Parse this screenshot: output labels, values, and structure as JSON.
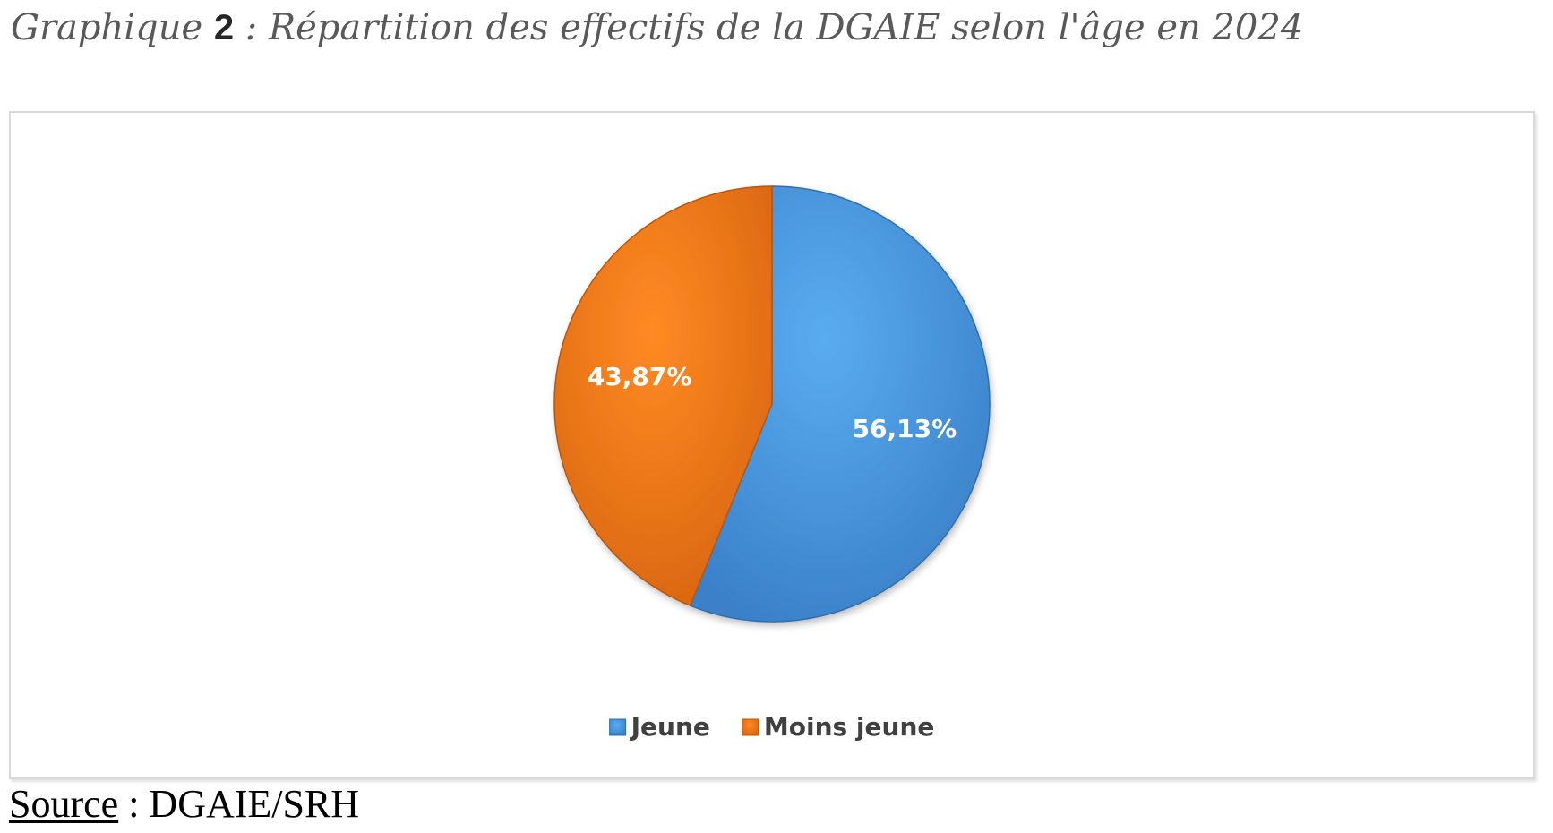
{
  "caption": {
    "prefix": "Graphique",
    "number": "2",
    "rest": " : Répartition des effectifs de la DGAIE selon l'âge en 2024"
  },
  "chart_data": {
    "type": "pie",
    "categories": [
      "Jeune",
      "Moins jeune"
    ],
    "values": [
      56.13,
      43.87
    ],
    "labels": [
      "56,13%",
      "43,87%"
    ],
    "colors": [
      "#4a9be0",
      "#f07a1a"
    ],
    "start_angle_deg": 0,
    "direction": "clockwise",
    "legend_position": "bottom"
  },
  "source": {
    "label": "Source",
    "text": " : DGAIE/SRH"
  }
}
